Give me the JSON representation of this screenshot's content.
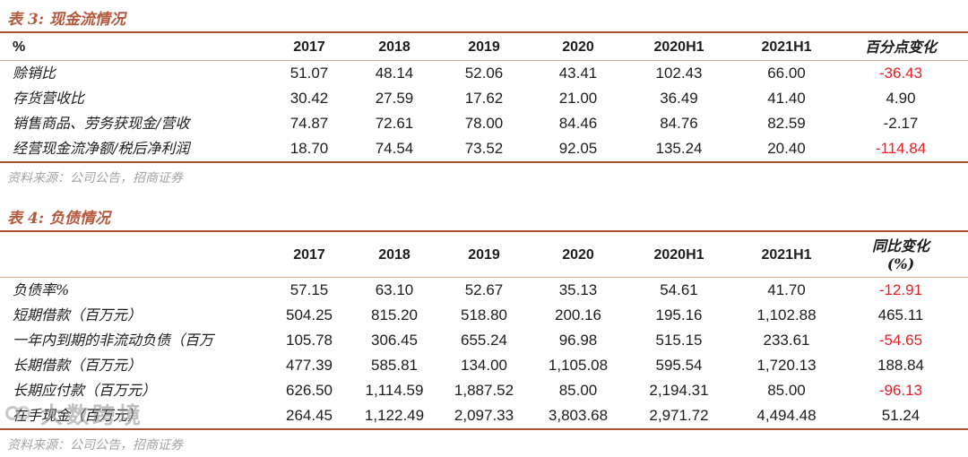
{
  "colors": {
    "accent": "#b5583c",
    "rule_heavy": "#a9512f",
    "rule_light": "#dbab96",
    "negative_red": "#ec1c24",
    "text": "#1c1c1c",
    "source_gray": "#a3a3a3"
  },
  "tables": [
    {
      "title": "表 3: 现金流情况",
      "columns": [
        "%",
        "2017",
        "2018",
        "2019",
        "2020",
        "2020H1",
        "2021H1",
        "百分点变化"
      ],
      "rows": [
        {
          "label": "赊销比",
          "values": [
            "51.07",
            "48.14",
            "52.06",
            "43.41",
            "102.43",
            "66.00",
            "-36.43"
          ],
          "red_last": true
        },
        {
          "label": "存货营收比",
          "values": [
            "30.42",
            "27.59",
            "17.62",
            "21.00",
            "36.49",
            "41.40",
            "4.90"
          ],
          "red_last": false
        },
        {
          "label": "销售商品、劳务获现金/营收",
          "values": [
            "74.87",
            "72.61",
            "78.00",
            "84.46",
            "84.76",
            "82.59",
            "-2.17"
          ],
          "red_last": false
        },
        {
          "label": "经营现金流净额/税后净利润",
          "values": [
            "18.70",
            "74.54",
            "73.52",
            "92.05",
            "135.24",
            "20.40",
            "-114.84"
          ],
          "red_last": true
        }
      ],
      "source": "资料来源：公司公告，招商证券"
    },
    {
      "title": "表 4: 负债情况",
      "columns": [
        "",
        "2017",
        "2018",
        "2019",
        "2020",
        "2020H1",
        "2021H1",
        "同比变化\n(%)"
      ],
      "rows": [
        {
          "label": "负债率%",
          "values": [
            "57.15",
            "63.10",
            "52.67",
            "35.13",
            "54.61",
            "41.70",
            "-12.91"
          ],
          "red_last": true
        },
        {
          "label": "短期借款（百万元）",
          "values": [
            "504.25",
            "815.20",
            "518.80",
            "200.16",
            "195.16",
            "1,102.88",
            "465.11"
          ],
          "red_last": false
        },
        {
          "label": "一年内到期的非流动负债（百万",
          "values": [
            "105.78",
            "306.45",
            "655.24",
            "96.98",
            "515.15",
            "233.61",
            "-54.65"
          ],
          "red_last": true
        },
        {
          "label": "长期借款（百万元）",
          "values": [
            "477.39",
            "585.81",
            "134.00",
            "1,105.08",
            "595.54",
            "1,720.13",
            "188.84"
          ],
          "red_last": false
        },
        {
          "label": "长期应付款（百万元）",
          "values": [
            "626.50",
            "1,114.59",
            "1,887.52",
            "85.00",
            "2,194.31",
            "85.00",
            "-96.13"
          ],
          "red_last": true
        },
        {
          "label": "在手现金（百万元）",
          "values": [
            "264.45",
            "1,122.49",
            "2,097.33",
            "3,803.68",
            "2,971.72",
            "4,494.48",
            "51.24"
          ],
          "red_last": false
        }
      ],
      "source": "资料来源：公司公告，招商证券"
    }
  ],
  "watermark": {
    "text": "大数跨境",
    "icon": "linked-rings-icon"
  }
}
